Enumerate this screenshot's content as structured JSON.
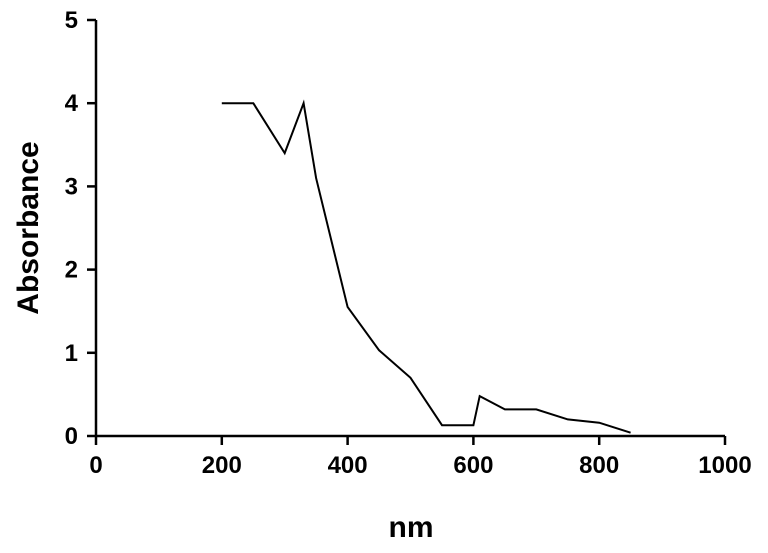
{
  "chart_data": {
    "type": "line",
    "title": "",
    "xlabel": "nm",
    "ylabel": "Absorbance",
    "xlim": [
      0,
      1000
    ],
    "ylim": [
      0,
      5
    ],
    "xticks": [
      0,
      200,
      400,
      600,
      800,
      1000
    ],
    "yticks": [
      0,
      1,
      2,
      3,
      4,
      5
    ],
    "grid": false,
    "legend": "none",
    "series": [
      {
        "color": "#000000",
        "x": [
          200,
          250,
          300,
          330,
          350,
          400,
          450,
          500,
          550,
          600,
          610,
          650,
          700,
          750,
          800,
          850
        ],
        "y": [
          4.0,
          4.0,
          3.4,
          4.0,
          3.1,
          1.55,
          1.03,
          0.7,
          0.13,
          0.13,
          0.48,
          0.32,
          0.32,
          0.2,
          0.16,
          0.04
        ]
      }
    ]
  }
}
